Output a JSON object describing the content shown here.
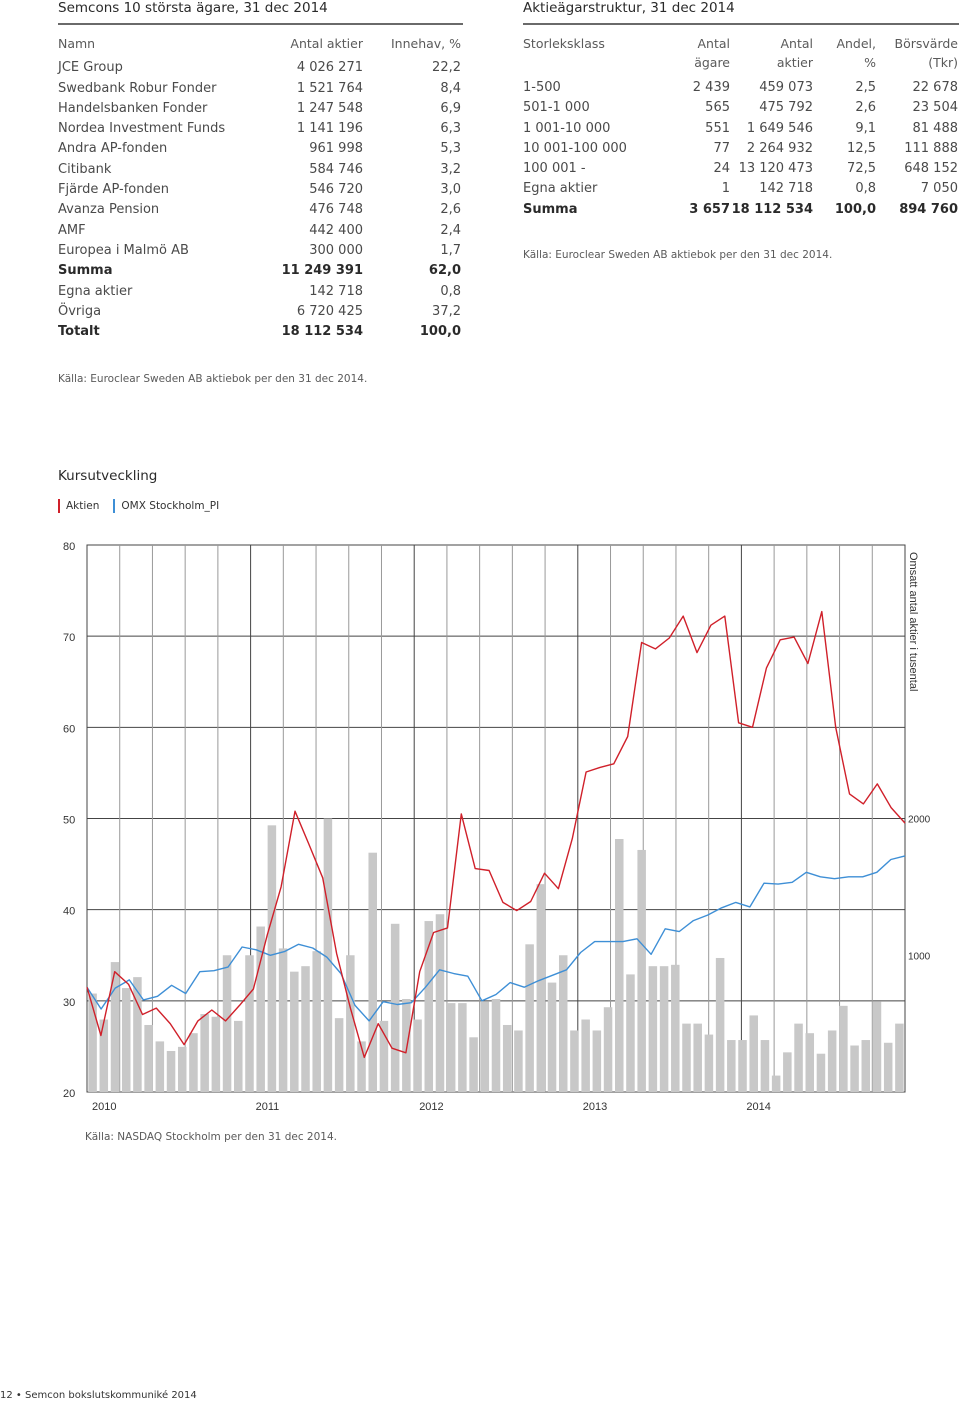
{
  "owners": {
    "title": "Semcons 10 största ägare, 31 dec 2014",
    "headers": [
      "Namn",
      "Antal aktier",
      "Innehav, %"
    ],
    "rows": [
      {
        "name": "JCE Group",
        "shares": "4 026 271",
        "pct": "22,2"
      },
      {
        "name": "Swedbank Robur Fonder",
        "shares": "1 521 764",
        "pct": "8,4"
      },
      {
        "name": "Handelsbanken Fonder",
        "shares": "1 247 548",
        "pct": "6,9"
      },
      {
        "name": "Nordea Investment Funds",
        "shares": "1 141 196",
        "pct": "6,3"
      },
      {
        "name": "Andra AP-fonden",
        "shares": "961 998",
        "pct": "5,3"
      },
      {
        "name": "Citibank",
        "shares": "584 746",
        "pct": "3,2"
      },
      {
        "name": "Fjärde AP-fonden",
        "shares": "546 720",
        "pct": "3,0"
      },
      {
        "name": "Avanza Pension",
        "shares": "476 748",
        "pct": "2,6"
      },
      {
        "name": "AMF",
        "shares": "442 400",
        "pct": "2,4"
      },
      {
        "name": "Europea i Malmö AB",
        "shares": "300 000",
        "pct": "1,7"
      },
      {
        "name": "Summa",
        "shares": "11 249 391",
        "pct": "62,0",
        "bold": true
      },
      {
        "name": "Egna aktier",
        "shares": "142 718",
        "pct": "0,8"
      },
      {
        "name": "Övriga",
        "shares": "6 720 425",
        "pct": "37,2"
      },
      {
        "name": "Totalt",
        "shares": "18 112 534",
        "pct": "100,0",
        "bold": true
      }
    ],
    "source": "Källa: Euroclear Sweden AB aktiebok per den 31 dec 2014."
  },
  "structure": {
    "title": "Aktieägarstruktur, 31 dec 2014",
    "headers1": [
      "Storleksklass",
      "Antal",
      "Antal",
      "Andel,",
      "Börsvärde"
    ],
    "headers2": [
      "",
      "ägare",
      "aktier",
      "%",
      "(Tkr)"
    ],
    "rows": [
      {
        "cls": "1-500",
        "owners": "2 439",
        "shares": "459 073",
        "pct": "2,5",
        "value": "22 678"
      },
      {
        "cls": "501-1 000",
        "owners": "565",
        "shares": "475 792",
        "pct": "2,6",
        "value": "23 504"
      },
      {
        "cls": "1 001-10 000",
        "owners": "551",
        "shares": "1 649 546",
        "pct": "9,1",
        "value": "81 488"
      },
      {
        "cls": "10 001-100 000",
        "owners": "77",
        "shares": "2 264 932",
        "pct": "12,5",
        "value": "111 888"
      },
      {
        "cls": "100 001 -",
        "owners": "24",
        "shares": "13 120 473",
        "pct": "72,5",
        "value": "648 152"
      },
      {
        "cls": "Egna aktier",
        "owners": "1",
        "shares": "142 718",
        "pct": "0,8",
        "value": "7 050"
      },
      {
        "cls": "Summa",
        "owners": "3 657",
        "shares": "18 112 534",
        "pct": "100,0",
        "value": "894 760",
        "bold": true
      }
    ],
    "source": "Källa: Euroclear Sweden AB aktiebok per den 31 dec 2014."
  },
  "chart": {
    "title": "Kursutveckling",
    "source": "Källa: NASDAQ Stockholm per den 31 dec 2014.",
    "right_axis_label": "Omsatt antal aktier i tusental"
  },
  "chart_data": {
    "type": "line",
    "legend_placement": "top-left",
    "grid": true,
    "x_tick_labels": [
      "2010",
      "2011",
      "2012",
      "2013",
      "2014"
    ],
    "y_ticks": [
      20,
      30,
      40,
      50,
      60,
      70,
      80
    ],
    "ylim": [
      20,
      80
    ],
    "y2_ticks": [
      1000,
      2000
    ],
    "y2lim": [
      0,
      4000
    ],
    "colors": {
      "aktien": "#d0202a",
      "omx": "#3e8fd6",
      "volume": "#c8c8c8"
    },
    "series": [
      {
        "name": "Aktien",
        "values": [
          31.5,
          26.2,
          33.2,
          31.8,
          28.5,
          29.2,
          27.5,
          25.2,
          27.8,
          29.0,
          27.8,
          29.5,
          31.3,
          37.2,
          42.5,
          50.8,
          47.2,
          43.5,
          35.2,
          29.2,
          23.8,
          27.5,
          24.8,
          24.3,
          33.2,
          37.5,
          38.0,
          50.5,
          44.5,
          44.3,
          40.8,
          39.9,
          40.9,
          44.0,
          42.3,
          47.8,
          55.1,
          55.6,
          56.0,
          59.0,
          69.3,
          68.6,
          69.8,
          72.2,
          68.2,
          71.2,
          72.2,
          60.5,
          60.0,
          66.5,
          69.6,
          69.9,
          67.0,
          72.7,
          60.0,
          52.7,
          51.6,
          53.8,
          51.2,
          49.5
        ]
      },
      {
        "name": "OMX Stockholm_PI",
        "values": [
          31.5,
          29.1,
          31.4,
          32.3,
          30.1,
          30.5,
          31.7,
          30.8,
          33.2,
          33.3,
          33.7,
          35.9,
          35.6,
          35.0,
          35.4,
          36.2,
          35.8,
          34.8,
          33.0,
          29.5,
          27.8,
          29.9,
          29.6,
          29.8,
          31.5,
          33.4,
          33.0,
          32.7,
          30.0,
          30.7,
          32.0,
          31.5,
          32.2,
          32.8,
          33.4,
          35.3,
          36.5,
          36.5,
          36.5,
          36.8,
          35.1,
          37.9,
          37.6,
          38.8,
          39.4,
          40.2,
          40.8,
          40.3,
          42.9,
          42.8,
          43.0,
          44.1,
          43.6,
          43.4,
          43.6,
          43.6,
          44.1,
          45.5,
          45.9
        ]
      },
      {
        "name": "Omsatt antal aktier i tusental",
        "values": [
          720,
          530,
          950,
          760,
          840,
          490,
          370,
          300,
          330,
          430,
          570,
          550,
          1000,
          520,
          1000,
          1210,
          1950,
          1050,
          880,
          920,
          1030,
          2000,
          540,
          1000,
          370,
          1750,
          520,
          1230,
          680,
          530,
          1250,
          1300,
          650,
          650,
          400,
          660,
          680,
          490,
          450,
          1080,
          1520,
          800,
          1000,
          450,
          530,
          450,
          620,
          1850,
          860,
          1770,
          920,
          920,
          930,
          500,
          500,
          420,
          980,
          380,
          380,
          560,
          380,
          120,
          290,
          500,
          430,
          280,
          450,
          630,
          340,
          380,
          660,
          360,
          500
        ]
      }
    ]
  },
  "footer": "12 • Semcon bokslutskommuniké 2014"
}
